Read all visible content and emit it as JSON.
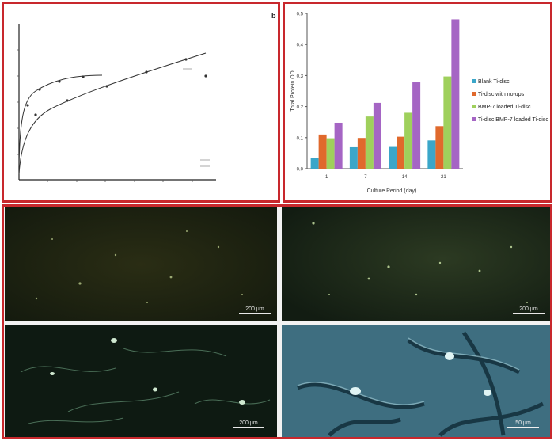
{
  "curve_panel": {
    "title": "",
    "corner_mark": "b"
  },
  "chart_data": {
    "type": "bar",
    "categories": [
      "1",
      "7",
      "14",
      "21"
    ],
    "series": [
      {
        "name": "Blank Ti-disc",
        "color": "#3ba6c9",
        "values": [
          0.034,
          0.069,
          0.07,
          0.091
        ]
      },
      {
        "name": "Ti-disc with no-ups",
        "color": "#e0692c",
        "values": [
          0.11,
          0.099,
          0.103,
          0.137
        ]
      },
      {
        "name": "BMP-7 loaded Ti-disc",
        "color": "#9fd05c",
        "values": [
          0.098,
          0.168,
          0.18,
          0.297
        ]
      },
      {
        "name": "Ti-disc BMP-7 loaded Ti-disc",
        "color": "#a565c4",
        "values": [
          0.148,
          0.212,
          0.278,
          0.481
        ]
      }
    ],
    "xlabel": "Culture Period (day)",
    "ylabel": "Total Protein OD",
    "ylim": [
      0.0,
      0.5
    ],
    "yticks": [
      "0.0",
      "0.1",
      "0.2",
      "0.3",
      "0.4",
      "0.5"
    ],
    "grid": false,
    "legend_position": "right"
  },
  "micrographs": [
    {
      "id": "a",
      "scale_label": "200 µm"
    },
    {
      "id": "b",
      "scale_label": "200 µm"
    },
    {
      "id": "c",
      "scale_label": "200 µm"
    },
    {
      "id": "d",
      "scale_label": "50 µm"
    }
  ],
  "colors": {
    "frame": "#c8282d",
    "micro_dark": "#0e1a12",
    "micro_phase": "#3e6e80"
  }
}
